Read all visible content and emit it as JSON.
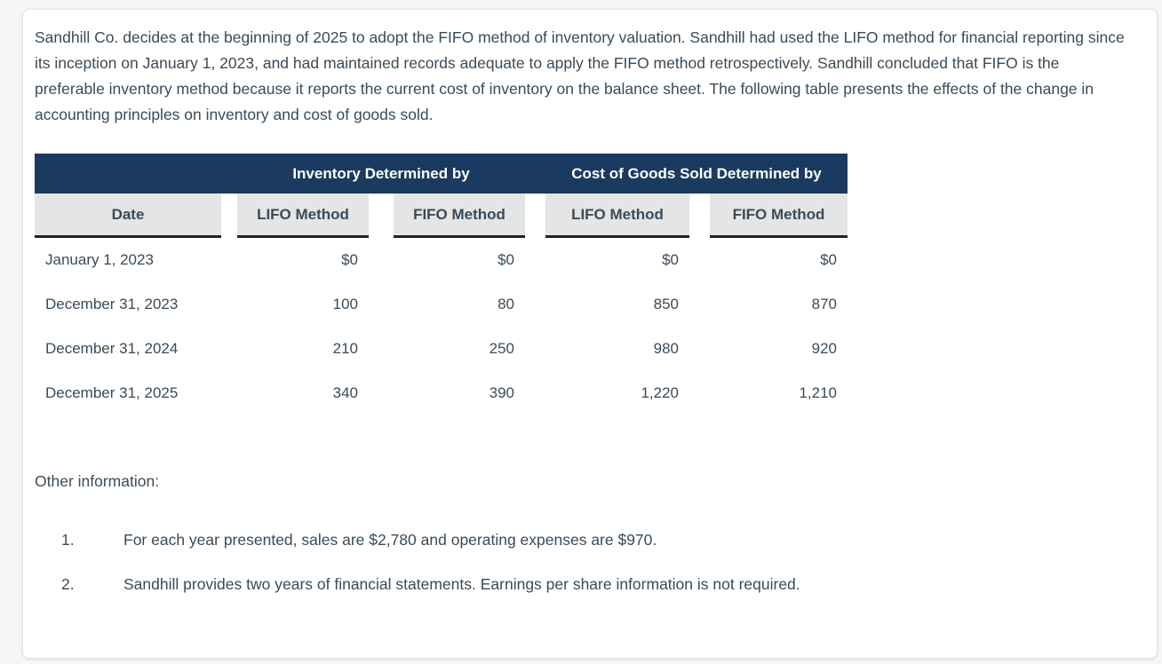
{
  "page": {
    "intro": "Sandhill Co. decides at the beginning of 2025 to adopt the FIFO method of inventory valuation. Sandhill had used the LIFO method for financial reporting since its inception on January 1, 2023, and had maintained records adequate to apply the FIFO method retrospectively. Sandhill concluded that FIFO is the preferable inventory method because it reports the current cost of inventory on the balance sheet. The following table presents the effects of the change in accounting principles on inventory and cost of goods sold.",
    "other_info_label": "Other information:",
    "notes": [
      {
        "num": "1.",
        "text": "For each year presented, sales are $2,780 and operating expenses are $970."
      },
      {
        "num": "2.",
        "text": "Sandhill provides two years of financial statements. Earnings per share information is not required."
      }
    ]
  },
  "table": {
    "group_headers": [
      "Inventory Determined by",
      "Cost of Goods Sold Determined by"
    ],
    "col_headers": [
      "Date",
      "LIFO Method",
      "FIFO Method",
      "LIFO Method",
      "FIFO Method"
    ],
    "rows": [
      {
        "date": "January 1, 2023",
        "values": [
          "$0",
          "$0",
          "$0",
          "$0"
        ]
      },
      {
        "date": "December 31, 2023",
        "values": [
          "100",
          "80",
          "850",
          "870"
        ]
      },
      {
        "date": "December 31, 2024",
        "values": [
          "210",
          "250",
          "980",
          "920"
        ]
      },
      {
        "date": "December 31, 2025",
        "values": [
          "340",
          "390",
          "1,220",
          "1,210"
        ]
      }
    ],
    "colors": {
      "header_bg": "#1b3a5f",
      "header_text": "#ffffff",
      "subheader_bg": "#e5e5e5",
      "underline": "#222222",
      "body_text": "#394b59"
    }
  }
}
